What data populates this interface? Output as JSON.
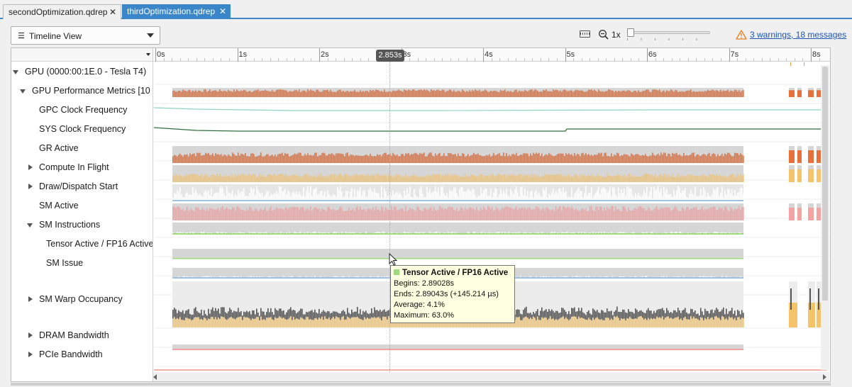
{
  "tabs": [
    {
      "label": "secondOptimization.qdrep",
      "active": false
    },
    {
      "label": "thirdOptimization.qdrep",
      "active": true
    }
  ],
  "toolbar": {
    "view_label": "Timeline View",
    "zoom_level": "1x",
    "zoom_fraction": 0.0,
    "warnings_link": "3 warnings, 18 messages"
  },
  "ruler": {
    "ticks": [
      "0s",
      "1s",
      "2s",
      "3s",
      "4s",
      "5s",
      "6s",
      "7s",
      "8s"
    ],
    "cursor_time": "2.853s"
  },
  "tree": {
    "rows": [
      {
        "label": "GPU (0000:00:1E.0 - Tesla T4)",
        "twisty": "down"
      },
      {
        "label": "GPU Performance Metrics [10",
        "twisty": "down"
      },
      {
        "label": "GPC Clock Frequency",
        "twisty": "none"
      },
      {
        "label": "SYS Clock Frequency",
        "twisty": "none"
      },
      {
        "label": "GR Active",
        "twisty": "none"
      },
      {
        "label": "Compute In Flight",
        "twisty": "right"
      },
      {
        "label": "Draw/Dispatch Start",
        "twisty": "right"
      },
      {
        "label": "SM Active",
        "twisty": "none"
      },
      {
        "label": "SM Instructions",
        "twisty": "down"
      },
      {
        "label": "Tensor Active / FP16 Active",
        "twisty": "none"
      },
      {
        "label": "SM Issue",
        "twisty": "none"
      },
      {
        "label": "SM Warp Occupancy",
        "twisty": "right"
      },
      {
        "label": "DRAM Bandwidth",
        "twisty": "right"
      },
      {
        "label": "PCIe Bandwidth",
        "twisty": "right"
      }
    ]
  },
  "colors": {
    "accent": "#3a86c8",
    "orange": "#e8703a",
    "gold": "#f5c36a",
    "pink": "#f4a3a3",
    "gray": "#d6d6d6",
    "green": "#9ddc7b",
    "teal": "#8fd3c1",
    "darkgreen": "#2f6e3c",
    "blue": "#9cc3e5"
  },
  "tooltip": {
    "title": "Tensor Active / FP16 Active",
    "begins": "Begins: 2.89028s",
    "ends": "Ends: 2.89043s (+145.214 µs)",
    "average": "Average: 4.1%",
    "maximum": "Maximum: 63.0%"
  }
}
